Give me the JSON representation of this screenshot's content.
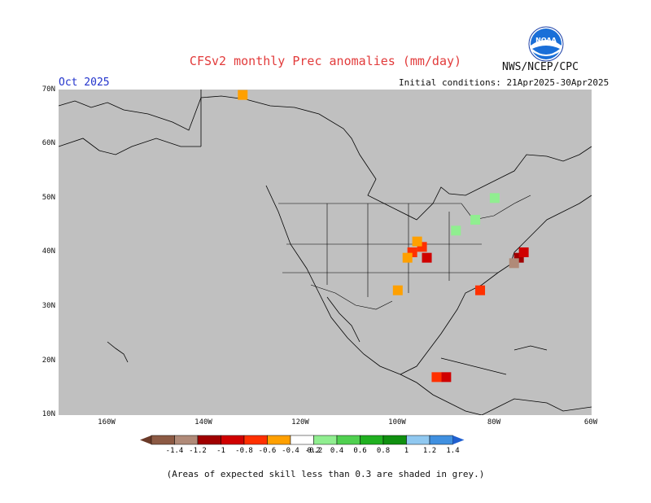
{
  "title": "CFSv2 monthly Prec anomalies (mm/day)",
  "month": "Oct 2025",
  "initial_conditions": "Initial conditions: 21Apr2025-30Apr2025",
  "agency": "NWS/NCEP/CPC",
  "logo_text": "NOAA",
  "note": "(Areas of expected skill less than 0.3 are shaded in grey.)",
  "map": {
    "background_color": "#c0c0c0",
    "lat_labels": [
      "70N",
      "60N",
      "50N",
      "40N",
      "30N",
      "20N",
      "10N"
    ],
    "lon_labels": [
      "160W",
      "140W",
      "120W",
      "100W",
      "80W",
      "60W"
    ],
    "lat_range": [
      10,
      70
    ],
    "lon_range": [
      -170,
      -60
    ]
  },
  "colorbar": {
    "labels": [
      "-1.4",
      "-1.2",
      "-1",
      "-0.8",
      "-0.6",
      "-0.4",
      "-0.2",
      "0.2",
      "0.4",
      "0.6",
      "0.8",
      "1",
      "1.2",
      "1.4"
    ],
    "colors": [
      "#6b3a28",
      "#8c5a44",
      "#b08a78",
      "#a00000",
      "#d00000",
      "#ff3000",
      "#ffa000",
      "#ffffff",
      "#90ee90",
      "#50d050",
      "#20b020",
      "#109010",
      "#90c8f0",
      "#4090e0",
      "#2060d0"
    ]
  },
  "anomaly_cells": [
    {
      "lon": -95,
      "lat": 41,
      "value": -0.5
    },
    {
      "lon": -97,
      "lat": 40,
      "value": -0.4
    },
    {
      "lon": -98,
      "lat": 39,
      "value": -0.3
    },
    {
      "lon": -96,
      "lat": 42,
      "value": -0.3
    },
    {
      "lon": -94,
      "lat": 39,
      "value": -0.6
    },
    {
      "lon": -75,
      "lat": 39,
      "value": -0.9
    },
    {
      "lon": -76,
      "lat": 38,
      "value": -1.0
    },
    {
      "lon": -74,
      "lat": 40,
      "value": -0.7
    },
    {
      "lon": -83,
      "lat": 33,
      "value": -0.5
    },
    {
      "lon": -90,
      "lat": 17,
      "value": -0.7
    },
    {
      "lon": -92,
      "lat": 17,
      "value": -0.5
    },
    {
      "lon": -84,
      "lat": 46,
      "value": 0.4
    },
    {
      "lon": -88,
      "lat": 44,
      "value": 0.3
    },
    {
      "lon": -80,
      "lat": 50,
      "value": 0.3
    },
    {
      "lon": -100,
      "lat": 33,
      "value": -0.3
    },
    {
      "lon": -132,
      "lat": 69,
      "value": -0.3
    }
  ]
}
